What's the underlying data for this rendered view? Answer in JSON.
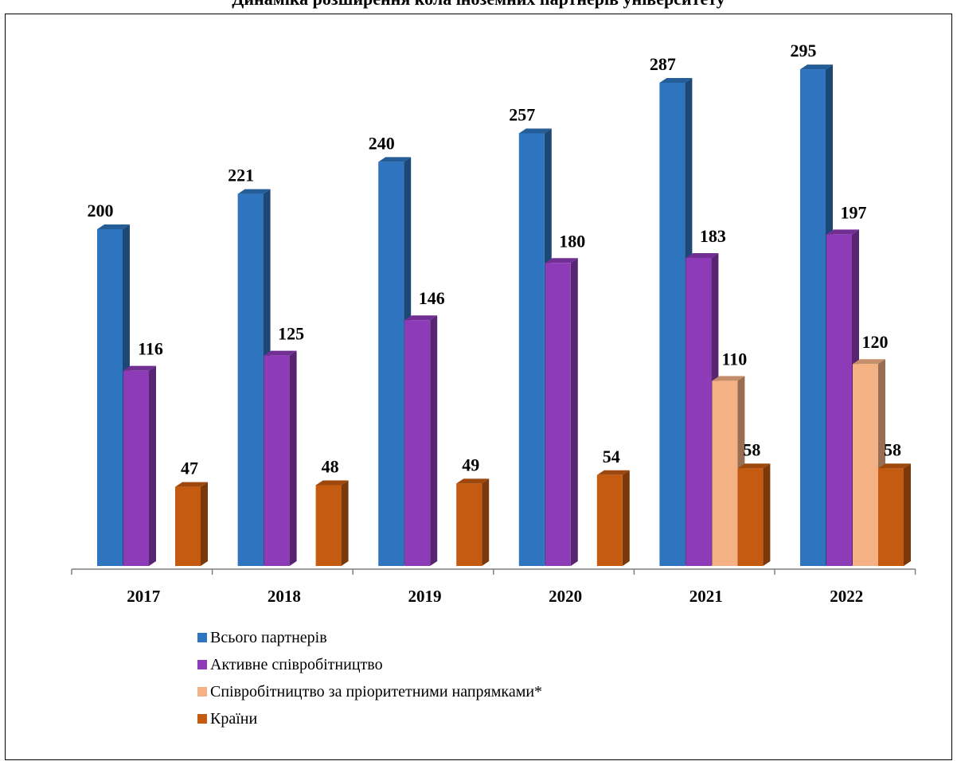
{
  "chart_data": {
    "type": "bar",
    "title": "Динаміка розширення кола іноземних партнерів університету",
    "categories": [
      "2017",
      "2018",
      "2019",
      "2020",
      "2021",
      "2022"
    ],
    "series": [
      {
        "name": "Всього партнерів",
        "color": "#2E74BF",
        "values": [
          200,
          221,
          240,
          257,
          287,
          295
        ]
      },
      {
        "name": "Активне співробітництво",
        "color": "#8E3BB8",
        "values": [
          116,
          125,
          146,
          180,
          183,
          197
        ]
      },
      {
        "name": "Співробітництво за пріоритетними напрямками*",
        "color": "#F4B183",
        "values": [
          null,
          null,
          null,
          null,
          110,
          120
        ]
      },
      {
        "name": "Країни",
        "color": "#C55A11",
        "values": [
          47,
          48,
          49,
          54,
          58,
          58
        ]
      }
    ],
    "xlabel": "",
    "ylabel": "",
    "ylim": [
      0,
      300
    ],
    "grid": false,
    "legend_position": "bottom-left"
  }
}
